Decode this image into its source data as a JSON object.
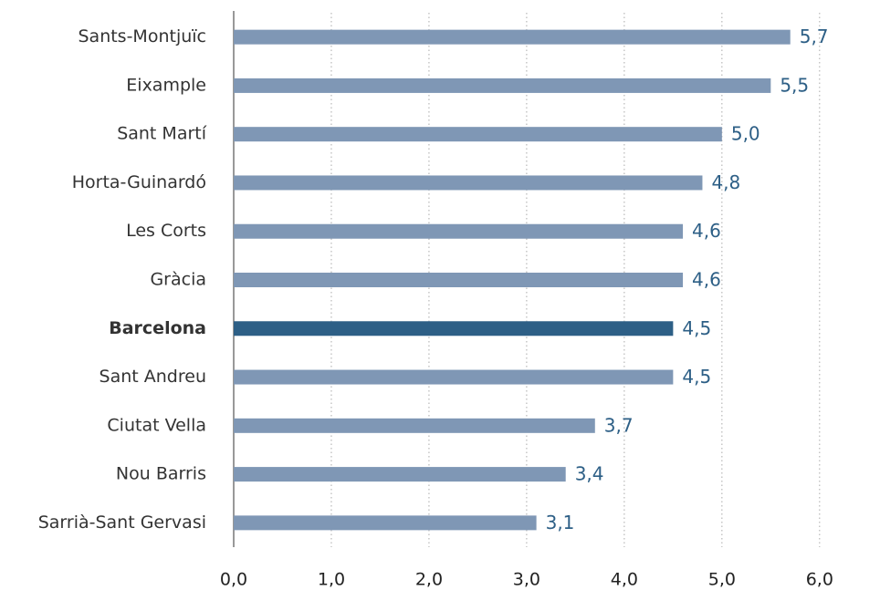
{
  "chart_data": {
    "type": "barh",
    "categories": [
      "Sants-Montjuïc",
      "Eixample",
      "Sant Martí",
      "Horta-Guinardó",
      "Les Corts",
      "Gràcia",
      "Barcelona",
      "Sant Andreu",
      "Ciutat Vella",
      "Nou Barris",
      "Sarrià-Sant Gervasi"
    ],
    "values": [
      5.7,
      5.5,
      5.0,
      4.8,
      4.6,
      4.6,
      4.5,
      4.5,
      3.7,
      3.4,
      3.1
    ],
    "value_labels": [
      "5,7",
      "5,5",
      "5,0",
      "4,8",
      "4,6",
      "4,6",
      "4,5",
      "4,5",
      "3,7",
      "3,4",
      "3,1"
    ],
    "color": "#7f97b5",
    "highlight_index": 6,
    "highlight_color": "#2d5f86",
    "xlim": [
      0,
      6.6
    ],
    "xticks": [
      {
        "value": 0,
        "label": "0,0"
      },
      {
        "value": 1,
        "label": "1,0"
      },
      {
        "value": 2,
        "label": "2,0"
      },
      {
        "value": 3,
        "label": "3,0"
      },
      {
        "value": 4,
        "label": "4,0"
      },
      {
        "value": 5,
        "label": "5,0"
      },
      {
        "value": 6,
        "label": "6,0"
      }
    ],
    "grid": true
  }
}
